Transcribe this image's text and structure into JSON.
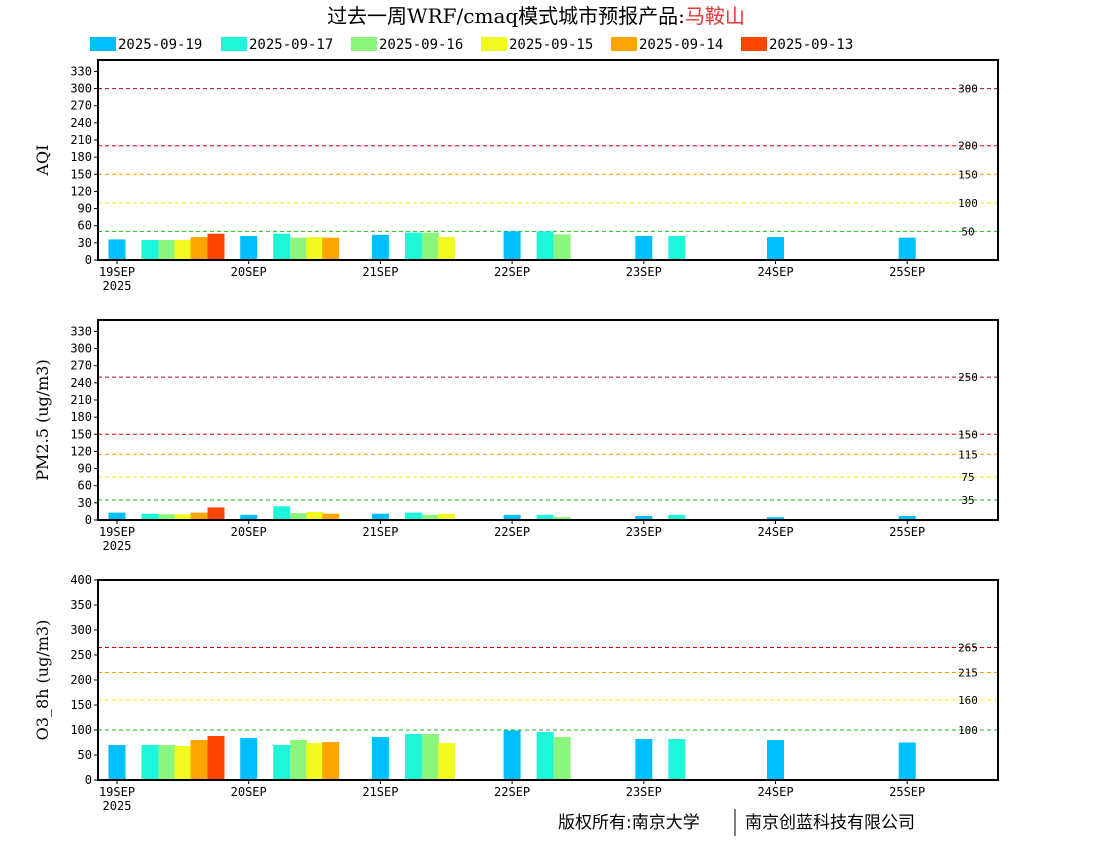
{
  "title": {
    "prefix": "过去一周WRF/cmaq模式城市预报产品:",
    "city": "马鞍山",
    "city_color": "#e53935"
  },
  "legend": [
    {
      "label": "2025-09-19",
      "color": "#00bfff"
    },
    {
      "label": "2025-09-17",
      "color": "#1ef5d9"
    },
    {
      "label": "2025-09-16",
      "color": "#8cf57d"
    },
    {
      "label": "2025-09-15",
      "color": "#f0fa1e"
    },
    {
      "label": "2025-09-14",
      "color": "#ffa500"
    },
    {
      "label": "2025-09-13",
      "color": "#ff4500"
    }
  ],
  "x_ticks": [
    "19SEP",
    "20SEP",
    "21SEP",
    "22SEP",
    "23SEP",
    "24SEP",
    "25SEP"
  ],
  "x_year": "2025",
  "footer": {
    "left": "版权所有:南京大学",
    "right": "南京创蓝科技有限公司"
  },
  "chart_data": [
    {
      "type": "bar",
      "ylabel": "AQI",
      "ylim": [
        0,
        350
      ],
      "yticks": [
        0,
        30,
        60,
        90,
        120,
        150,
        180,
        210,
        240,
        270,
        300,
        330
      ],
      "thresholds": [
        {
          "value": 50,
          "label": "50",
          "color": "#22bb22"
        },
        {
          "value": 100,
          "label": "100",
          "color": "#eeee00"
        },
        {
          "value": 150,
          "label": "150",
          "color": "#ff9900"
        },
        {
          "value": 200,
          "label": "200",
          "color": "#dd0000"
        },
        {
          "value": 300,
          "label": "300",
          "color": "#aa0044"
        }
      ],
      "series": [
        {
          "name": "2025-09-19",
          "values": [
            36,
            42,
            44,
            50,
            42,
            40,
            39
          ]
        },
        {
          "name": "2025-09-17",
          "values": [
            35,
            46,
            48,
            50,
            42,
            null,
            null
          ]
        },
        {
          "name": "2025-09-16",
          "values": [
            35,
            39,
            48,
            45,
            null,
            null,
            null
          ]
        },
        {
          "name": "2025-09-15",
          "values": [
            35,
            40,
            40,
            null,
            null,
            null,
            null
          ]
        },
        {
          "name": "2025-09-14",
          "values": [
            40,
            39,
            null,
            null,
            null,
            null,
            null
          ]
        },
        {
          "name": "2025-09-13",
          "values": [
            46,
            null,
            null,
            null,
            null,
            null,
            null
          ]
        }
      ]
    },
    {
      "type": "bar",
      "ylabel": "PM2.5 (ug/m3)",
      "ylim": [
        0,
        350
      ],
      "yticks": [
        0,
        30,
        60,
        90,
        120,
        150,
        180,
        210,
        240,
        270,
        300,
        330
      ],
      "thresholds": [
        {
          "value": 35,
          "label": "35",
          "color": "#22bb22"
        },
        {
          "value": 75,
          "label": "75",
          "color": "#eeee00"
        },
        {
          "value": 115,
          "label": "115",
          "color": "#ff9900"
        },
        {
          "value": 150,
          "label": "150",
          "color": "#dd0000"
        },
        {
          "value": 250,
          "label": "250",
          "color": "#aa0044"
        }
      ],
      "series": [
        {
          "name": "2025-09-19",
          "values": [
            13,
            9,
            11,
            9,
            7,
            5,
            7
          ]
        },
        {
          "name": "2025-09-17",
          "values": [
            11,
            24,
            13,
            9,
            9,
            null,
            null
          ]
        },
        {
          "name": "2025-09-16",
          "values": [
            10,
            12,
            9,
            5,
            null,
            null,
            null
          ]
        },
        {
          "name": "2025-09-15",
          "values": [
            10,
            14,
            11,
            null,
            null,
            null,
            null
          ]
        },
        {
          "name": "2025-09-14",
          "values": [
            13,
            11,
            null,
            null,
            null,
            null,
            null
          ]
        },
        {
          "name": "2025-09-13",
          "values": [
            22,
            null,
            null,
            null,
            null,
            null,
            null
          ]
        }
      ]
    },
    {
      "type": "bar",
      "ylabel": "O3_8h (ug/m3)",
      "ylim": [
        0,
        400
      ],
      "yticks": [
        0,
        50,
        100,
        150,
        200,
        250,
        300,
        350,
        400
      ],
      "thresholds": [
        {
          "value": 100,
          "label": "100",
          "color": "#22bb22"
        },
        {
          "value": 160,
          "label": "160",
          "color": "#eeee00"
        },
        {
          "value": 215,
          "label": "215",
          "color": "#ff9900"
        },
        {
          "value": 265,
          "label": "265",
          "color": "#dd0000"
        }
      ],
      "series": [
        {
          "name": "2025-09-19",
          "values": [
            70,
            84,
            86,
            99,
            82,
            80,
            75
          ]
        },
        {
          "name": "2025-09-17",
          "values": [
            70,
            70,
            92,
            96,
            82,
            null,
            null
          ]
        },
        {
          "name": "2025-09-16",
          "values": [
            70,
            80,
            92,
            86,
            null,
            null,
            null
          ]
        },
        {
          "name": "2025-09-15",
          "values": [
            68,
            74,
            74,
            null,
            null,
            null,
            null
          ]
        },
        {
          "name": "2025-09-14",
          "values": [
            80,
            76,
            null,
            null,
            null,
            null,
            null
          ]
        },
        {
          "name": "2025-09-13",
          "values": [
            88,
            null,
            null,
            null,
            null,
            null,
            null
          ]
        }
      ]
    }
  ]
}
